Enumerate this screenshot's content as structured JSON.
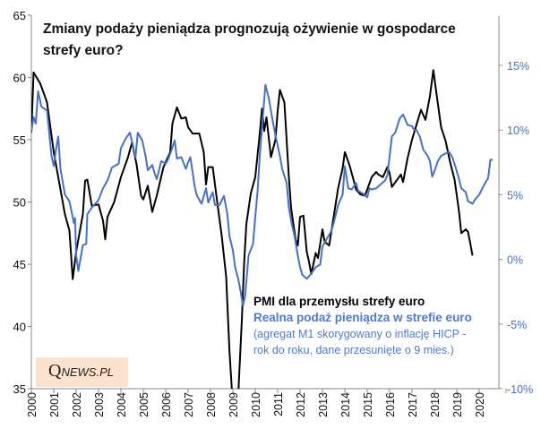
{
  "chart_data": {
    "type": "line",
    "title": "Zmiany podaży pieniądza prognozują ożywienie w gospodarce strefy euro?",
    "legend": {
      "placement": "bottom-right",
      "entries": [
        "PMI dla przemysłu strefy euro",
        "Realna podaż pieniądza w strefie euro"
      ],
      "note": "(agregat M1 skorygowany o inflację HICP - rok do roku, dane przesunięte o 9 mies.)",
      "note_line1": "(agregat M1 skorygowany o inflację HICP -",
      "note_line2": "rok do roku, dane przesunięte o 9 mies.)"
    },
    "x_ticks": [
      "2000",
      "2001",
      "2002",
      "2003",
      "2004",
      "2005",
      "2006",
      "2007",
      "2008",
      "2009",
      "2010",
      "2011",
      "2012",
      "2013",
      "2014",
      "2015",
      "2016",
      "2017",
      "2018",
      "2019",
      "2020"
    ],
    "xlim": [
      2000,
      2021.2
    ],
    "y_left": {
      "ylim": [
        35,
        65
      ],
      "ticks": [
        "35",
        "40",
        "45",
        "50",
        "55",
        "60",
        "65"
      ]
    },
    "y_right": {
      "ylim": [
        -10,
        15
      ],
      "ticks": [
        "-10%",
        "-5%",
        "0%",
        "5%",
        "10%",
        "15%"
      ],
      "color": "#4472c4"
    },
    "series": [
      {
        "name": "PMI dla przemysłu strefy euro",
        "axis": "left",
        "color": "#000000",
        "x": [
          2000.0,
          2000.1,
          2000.4,
          2000.7,
          2001.0,
          2001.2,
          2001.5,
          2001.7,
          2001.85,
          2002.0,
          2002.3,
          2002.4,
          2002.5,
          2002.7,
          2003.0,
          2003.2,
          2003.3,
          2003.4,
          2003.7,
          2004.0,
          2004.3,
          2004.5,
          2004.7,
          2004.9,
          2005.0,
          2005.2,
          2005.4,
          2005.6,
          2005.9,
          2006.0,
          2006.2,
          2006.3,
          2006.5,
          2006.7,
          2006.9,
          2007.0,
          2007.2,
          2007.5,
          2007.7,
          2007.8,
          2007.9,
          2008.1,
          2008.3,
          2008.5,
          2008.7,
          2008.85,
          2008.95,
          2009.1,
          2009.25,
          2009.4,
          2009.5,
          2009.6,
          2009.8,
          2010.0,
          2010.2,
          2010.3,
          2010.4,
          2010.5,
          2010.7,
          2010.9,
          2011.0,
          2011.1,
          2011.3,
          2011.4,
          2011.5,
          2011.6,
          2011.8,
          2011.9,
          2012.0,
          2012.15,
          2012.3,
          2012.4,
          2012.5,
          2012.7,
          2012.8,
          2013.0,
          2013.1,
          2013.3,
          2013.5,
          2013.7,
          2013.9,
          2014.0,
          2014.2,
          2014.4,
          2014.5,
          2014.7,
          2014.9,
          2015.0,
          2015.2,
          2015.4,
          2015.5,
          2015.7,
          2015.9,
          2016.0,
          2016.1,
          2016.3,
          2016.5,
          2016.6,
          2016.8,
          2017.0,
          2017.2,
          2017.4,
          2017.6,
          2017.8,
          2017.95,
          2018.1,
          2018.3,
          2018.5,
          2018.7,
          2018.9,
          2019.0,
          2019.1,
          2019.2,
          2019.4,
          2019.5,
          2019.6,
          2019.7
        ],
        "values": [
          55.6,
          60.4,
          59.5,
          58,
          54,
          52,
          49,
          47.7,
          43.8,
          46,
          49,
          51.7,
          51.8,
          49.7,
          49.8,
          48.5,
          47,
          48.8,
          50,
          52,
          53.5,
          54.8,
          53,
          50.5,
          50.2,
          51.3,
          49.2,
          50.5,
          52.8,
          53.2,
          54,
          56.3,
          57.6,
          56.7,
          56.8,
          56,
          55.5,
          55.5,
          54,
          51.4,
          52.8,
          52.8,
          50,
          47.3,
          44,
          38,
          35,
          33.5,
          35,
          40.5,
          45,
          48.2,
          50.7,
          52,
          55.5,
          57.5,
          55.7,
          56.8,
          53.6,
          55,
          57.3,
          59,
          58,
          55,
          52,
          49.5,
          47,
          46.5,
          48.8,
          48.9,
          46,
          45.2,
          44.2,
          45.9,
          45.5,
          47.8,
          46.8,
          46.5,
          48.8,
          51.1,
          52.7,
          54,
          53,
          51.7,
          51,
          50.6,
          50.5,
          51,
          52,
          52.4,
          52.2,
          52,
          52.8,
          52.3,
          51.2,
          51.7,
          52.2,
          51.6,
          53.5,
          55,
          56.2,
          57.4,
          56.6,
          58.5,
          60.6,
          58.6,
          56,
          54.9,
          53.2,
          51.8,
          50.5,
          49.2,
          47.5,
          47.8,
          47.6,
          46.7,
          45.7
        ]
      },
      {
        "name": "Realna podaż pieniądza w strefie euro",
        "axis": "right",
        "unit": "%",
        "color": "#4472c4",
        "x": [
          2000.0,
          2000.1,
          2000.2,
          2000.3,
          2000.45,
          2000.7,
          2000.9,
          2001.0,
          2001.1,
          2001.2,
          2001.3,
          2001.5,
          2001.7,
          2001.9,
          2001.95,
          2002.0,
          2002.1,
          2002.3,
          2002.45,
          2002.5,
          2002.7,
          2003.0,
          2003.2,
          2003.4,
          2003.6,
          2003.9,
          2004.0,
          2004.2,
          2004.4,
          2004.5,
          2004.65,
          2004.75,
          2004.95,
          2005.1,
          2005.2,
          2005.4,
          2005.5,
          2005.6,
          2005.8,
          2006.0,
          2006.1,
          2006.25,
          2006.4,
          2006.5,
          2006.7,
          2006.9,
          2007.0,
          2007.1,
          2007.3,
          2007.4,
          2007.6,
          2007.8,
          2007.9,
          2008.1,
          2008.2,
          2008.4,
          2008.6,
          2008.75,
          2008.85,
          2009.0,
          2009.1,
          2009.25,
          2009.35,
          2009.45,
          2009.55,
          2009.7,
          2009.9,
          2010.0,
          2010.1,
          2010.2,
          2010.35,
          2010.45,
          2010.6,
          2010.8,
          2010.9,
          2011.0,
          2011.1,
          2011.2,
          2011.4,
          2011.5,
          2011.6,
          2011.75,
          2011.9,
          2012.0,
          2012.1,
          2012.3,
          2012.5,
          2012.7,
          2012.9,
          2013.0,
          2013.2,
          2013.4,
          2013.5,
          2013.7,
          2013.9,
          2014.0,
          2014.15,
          2014.3,
          2014.5,
          2014.6,
          2014.8,
          2015.0,
          2015.1,
          2015.2,
          2015.4,
          2015.6,
          2015.8,
          2015.9,
          2016.0,
          2016.1,
          2016.25,
          2016.45,
          2016.6,
          2016.8,
          2017.0,
          2017.1,
          2017.2,
          2017.35,
          2017.5,
          2017.7,
          2017.8,
          2017.9,
          2018.0,
          2018.15,
          2018.3,
          2018.5,
          2018.65,
          2018.8,
          2018.95,
          2019.1,
          2019.2,
          2019.4,
          2019.5,
          2019.7,
          2019.8,
          2020.0,
          2020.2,
          2020.3,
          2020.4,
          2020.5,
          2020.6
        ],
        "values": [
          9.9,
          11,
          10.5,
          13,
          11.8,
          11.5,
          8,
          7.2,
          8.5,
          9.5,
          7,
          5,
          4.5,
          2.8,
          3.2,
          0.3,
          -0.9,
          1.1,
          1.2,
          3.5,
          4,
          4.6,
          5.5,
          6.1,
          7.1,
          7.4,
          8.6,
          9.3,
          9.8,
          9.1,
          7.9,
          9.8,
          9.2,
          8,
          6.9,
          7.3,
          6.7,
          6.2,
          7.6,
          7.4,
          7.7,
          8.4,
          9.2,
          7.8,
          7.9,
          7,
          7.5,
          7.9,
          5.6,
          4.9,
          4.3,
          5.5,
          4.4,
          5.2,
          4.2,
          4.2,
          4.9,
          3.5,
          1.8,
          0.7,
          -0.6,
          -1.6,
          -2.5,
          -3.6,
          -2.8,
          0.3,
          1.2,
          3.3,
          5.2,
          8,
          11.2,
          13.5,
          12.5,
          10.5,
          9.6,
          8.8,
          8,
          7,
          5.9,
          4,
          3,
          1.8,
          0.3,
          -0.6,
          -1.2,
          -1.5,
          -1.1,
          -0.6,
          -0.4,
          1,
          1.6,
          2.2,
          2.8,
          4.2,
          5,
          7.2,
          5.5,
          5.4,
          5.9,
          5.3,
          5.1,
          4.8,
          5.5,
          5.4,
          5.5,
          5.8,
          6.1,
          6.5,
          8,
          9.5,
          9.8,
          10.9,
          11.2,
          10.4,
          10.3,
          10,
          10,
          9.5,
          8.5,
          8,
          7.6,
          6.4,
          6.8,
          7.6,
          8,
          8.2,
          8.3,
          7.9,
          7.1,
          6.2,
          5.5,
          5.2,
          4.5,
          4.3,
          4.6,
          5,
          5.7,
          6,
          6.3,
          7.7,
          7.7
        ]
      }
    ],
    "grid": false,
    "xlabel": "",
    "ylabel": ""
  },
  "logo": {
    "q": "Q",
    "text": "NEWS",
    "suffix": ".PL"
  }
}
